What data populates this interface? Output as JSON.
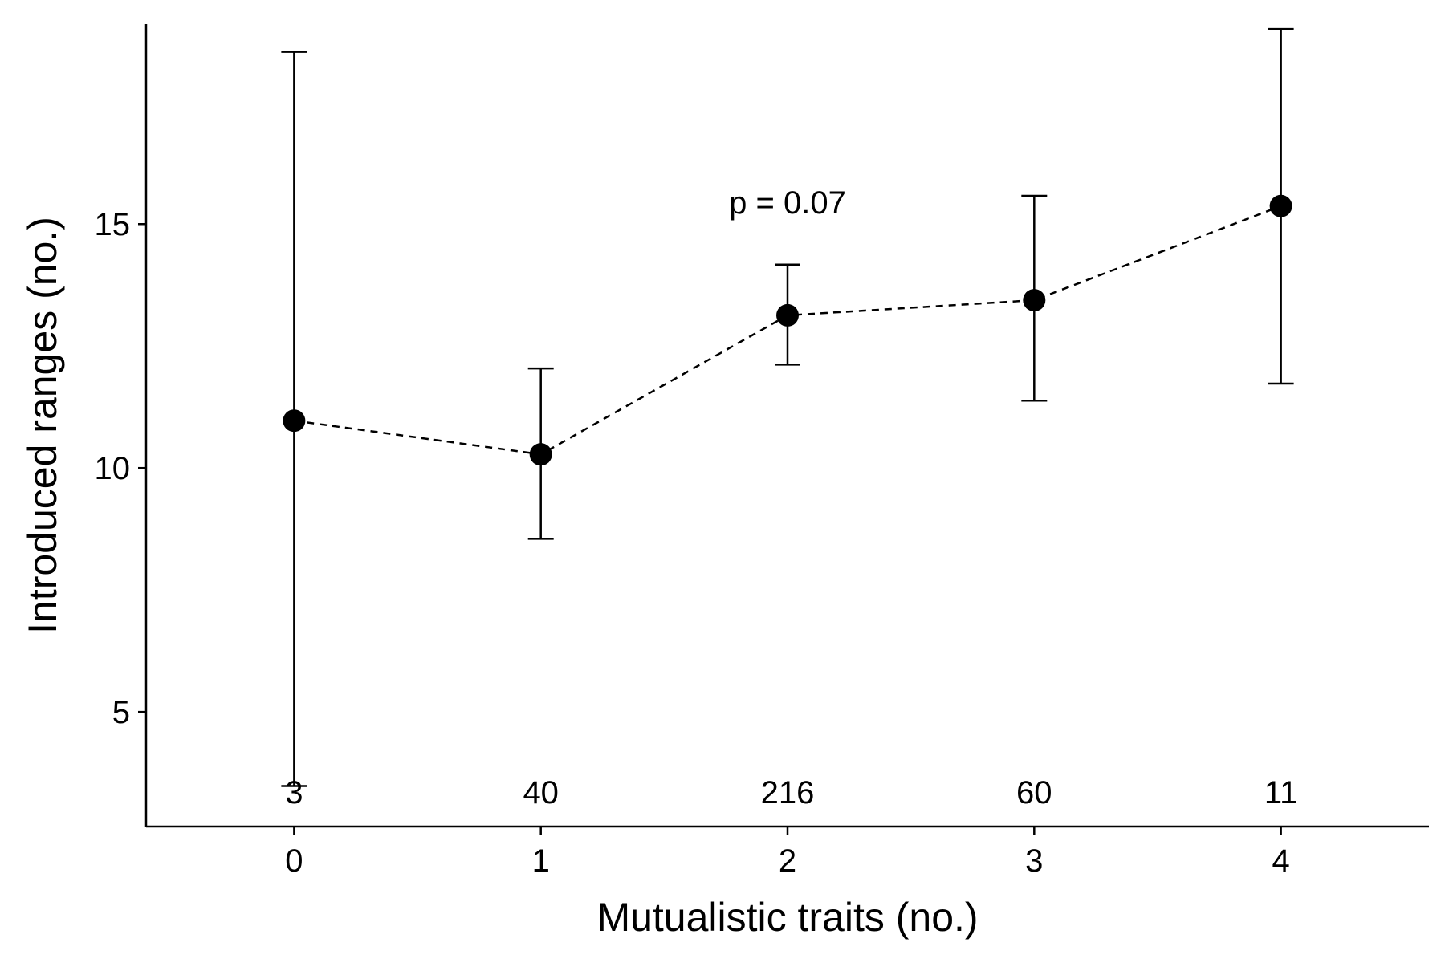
{
  "chart_data": {
    "type": "scatter",
    "xlabel": "Mutualistic traits (no.)",
    "ylabel": "Introduced ranges (no.)",
    "categories": [
      "0",
      "1",
      "2",
      "3",
      "4"
    ],
    "x": [
      0,
      1,
      2,
      3,
      4
    ],
    "y_ticks": [
      5,
      10,
      15
    ],
    "xlim": [
      -0.6,
      4.6
    ],
    "ylim": [
      2.65,
      19.1
    ],
    "grid": false,
    "legend": "none",
    "line_style": "dashed",
    "series": [
      {
        "values": [
          10.97,
          10.28,
          13.13,
          13.44,
          15.37
        ],
        "err_low": [
          3.48,
          8.55,
          12.12,
          11.38,
          11.73
        ],
        "err_high": [
          18.53,
          12.04,
          14.17,
          15.58,
          19.0
        ]
      }
    ],
    "sample_sizes": [
      "3",
      "40",
      "216",
      "60",
      "11"
    ],
    "annotation": {
      "text": "p = 0.07",
      "x": 2,
      "y": 15.45
    },
    "colors": {
      "marker": "#000000",
      "line": "#000000",
      "axis": "#000000"
    }
  }
}
